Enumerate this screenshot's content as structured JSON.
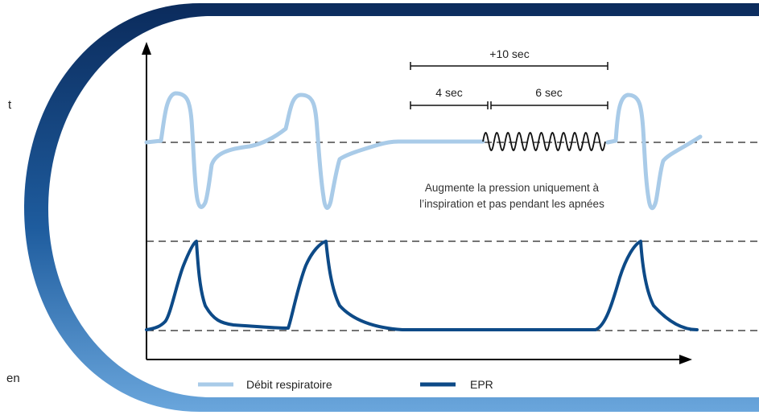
{
  "side_text": {
    "top": "t",
    "bottom": "en"
  },
  "annotations": {
    "total_span": "+10 sec",
    "first_span": "4 sec",
    "second_span": "6 sec",
    "note_line1": "Augmente la pression uniquement à",
    "note_line2": "l’inspiration et pas pendant les apnées"
  },
  "legend": [
    {
      "label": "Débit respiratoire",
      "color": "#a9cbe8"
    },
    {
      "label": "EPR",
      "color": "#0d4a87"
    }
  ],
  "colors": {
    "panel_edge_dark": "#0b2b5c",
    "panel_edge_light": "#4d8ccc",
    "flow": "#a9cbe8",
    "epr": "#0d4a87",
    "axis": "#000000",
    "dashed": "#222222"
  }
}
